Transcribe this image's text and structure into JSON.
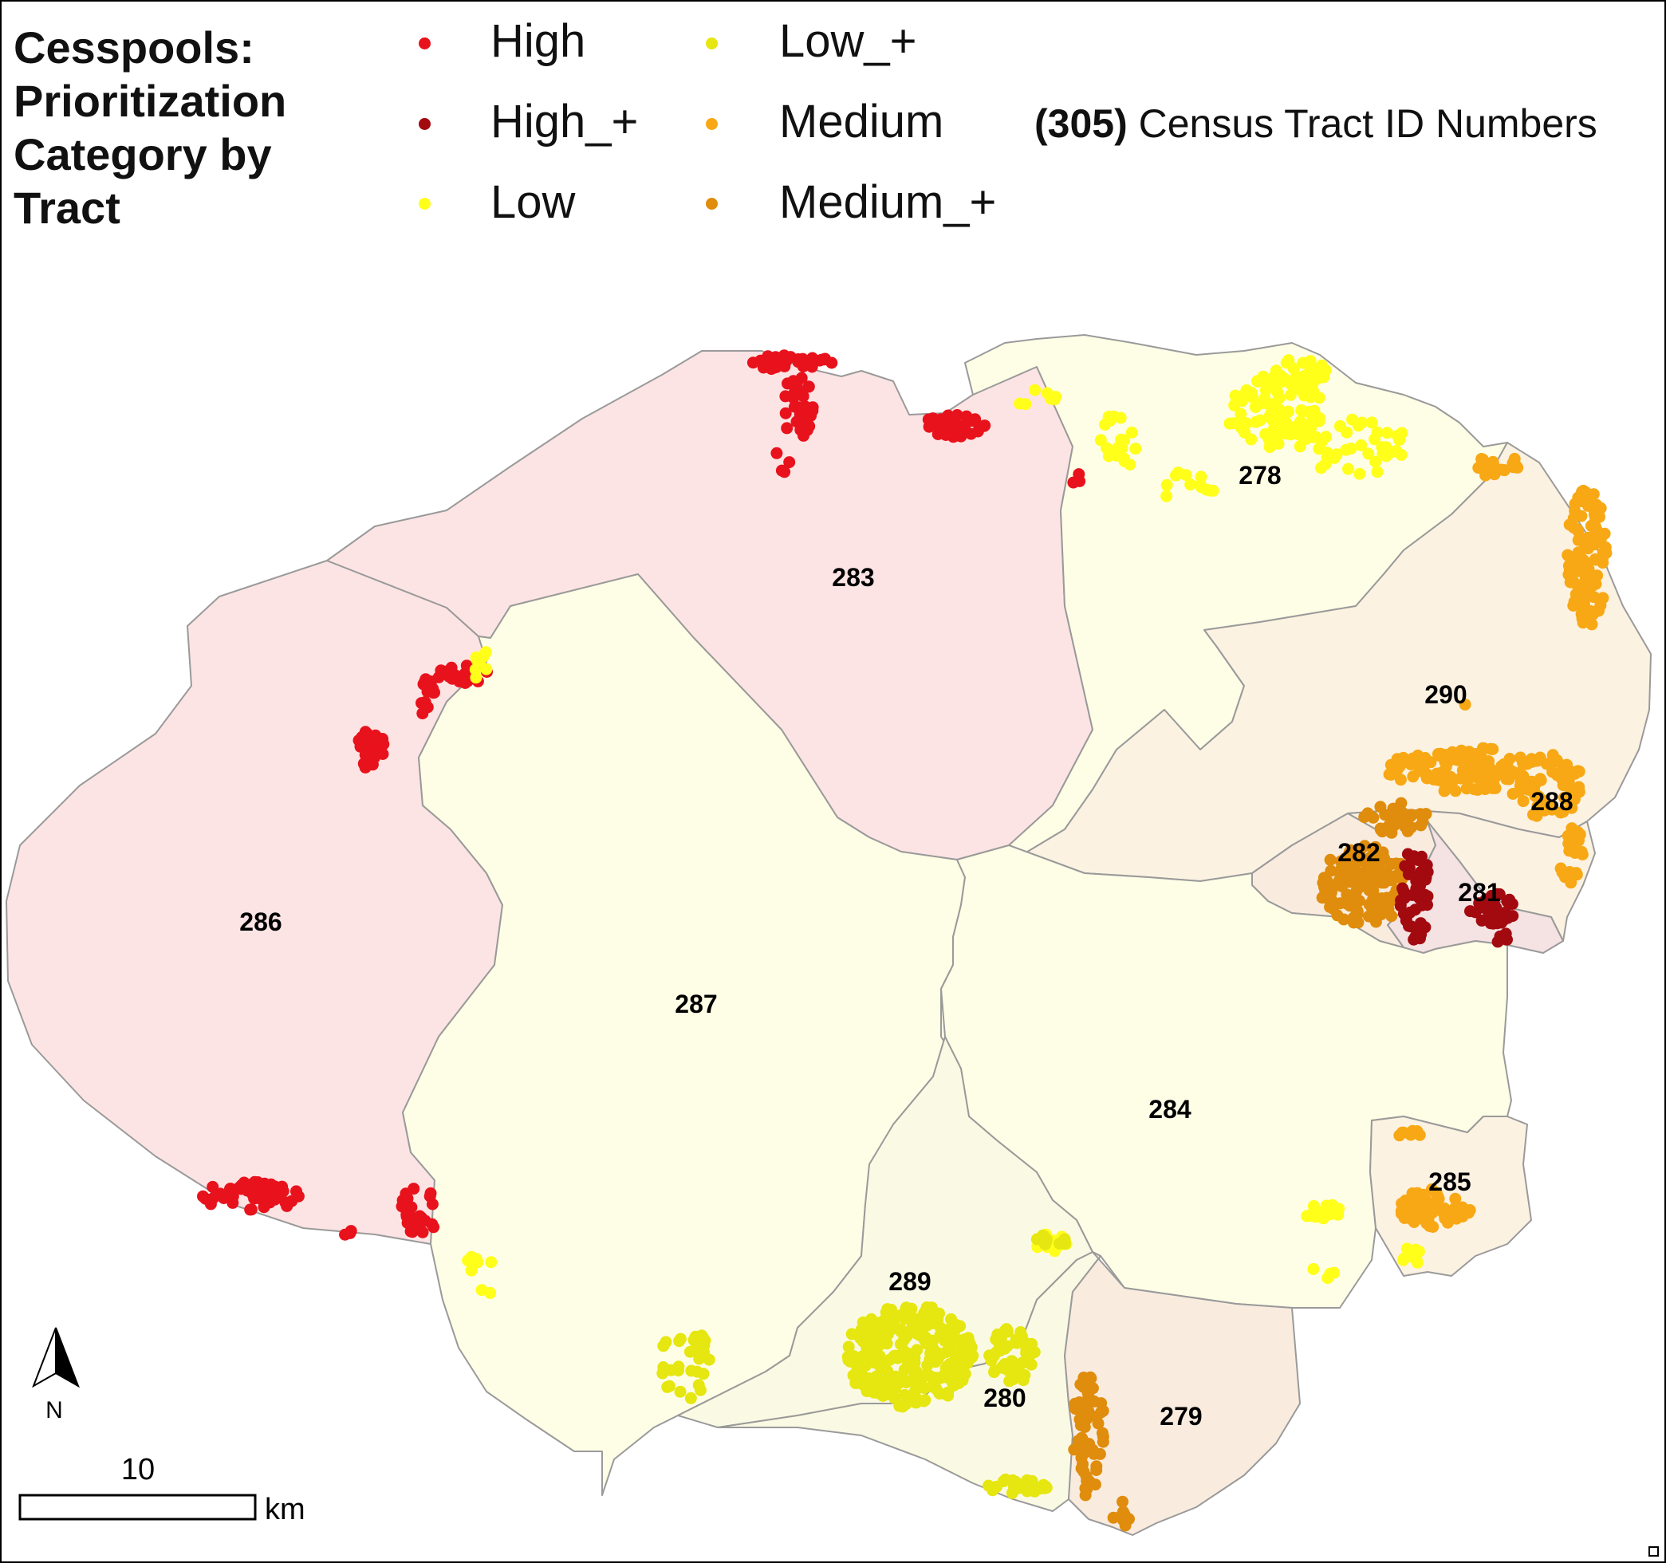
{
  "legend": {
    "title_lines": [
      "Cesspools:",
      "Prioritization",
      "Category by",
      "Tract"
    ],
    "categories": [
      {
        "label": "High",
        "color": "#e8121c"
      },
      {
        "label": "High_+",
        "color": "#a20a10"
      },
      {
        "label": "Low",
        "color": "#ffff1a"
      },
      {
        "label": "Low_+",
        "color": "#e6e610"
      },
      {
        "label": "Medium",
        "color": "#f7a814"
      },
      {
        "label": "Medium_+",
        "color": "#e08c0c"
      }
    ],
    "tract_id_example": "(305)",
    "tract_id_label": "Census Tract ID Numbers"
  },
  "tracts": [
    {
      "id": "278",
      "category": "Low"
    },
    {
      "id": "279",
      "category": "Medium_+"
    },
    {
      "id": "280",
      "category": "Low_+"
    },
    {
      "id": "281",
      "category": "High_+"
    },
    {
      "id": "282",
      "category": "Medium_+"
    },
    {
      "id": "283",
      "category": "High"
    },
    {
      "id": "284",
      "category": "Low"
    },
    {
      "id": "285",
      "category": "Medium"
    },
    {
      "id": "286",
      "category": "High"
    },
    {
      "id": "287",
      "category": "Low"
    },
    {
      "id": "288",
      "category": "Medium"
    },
    {
      "id": "289",
      "category": "Low_+"
    },
    {
      "id": "290",
      "category": "Medium"
    }
  ],
  "fills": {
    "high": "#fde4e4",
    "low": "#fefee6",
    "medium": "#fcf2e2",
    "low_plus": "#fafae4",
    "high_plus": "#f5e2e2",
    "medium_plus": "#f9ecdf"
  },
  "north_arrow": {
    "label": "N"
  },
  "scale_bar": {
    "value_label": "10",
    "unit_label": "km"
  }
}
